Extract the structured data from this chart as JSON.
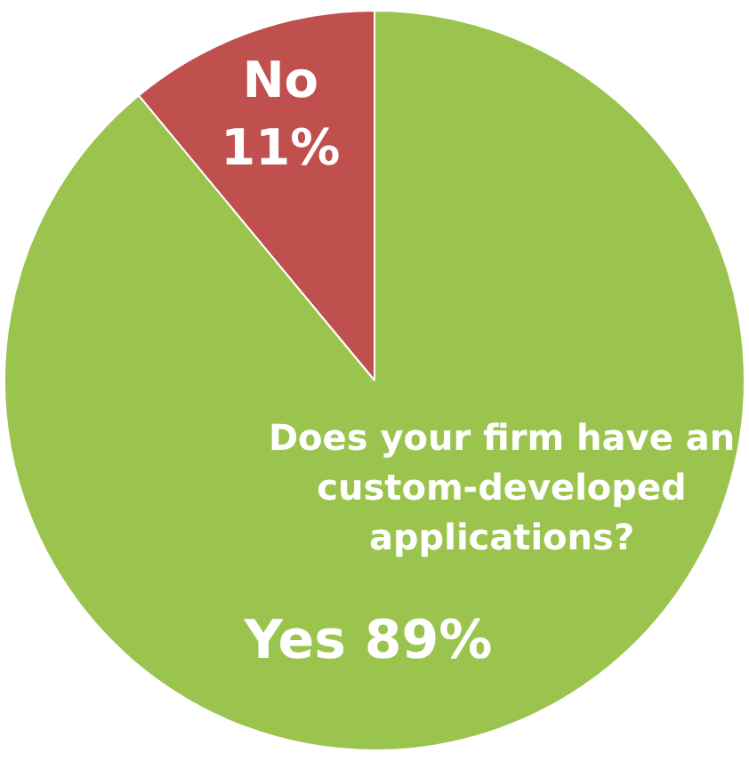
{
  "chart_data": {
    "type": "pie",
    "title": "Does your firm have an custom-developed applications?",
    "categories": [
      "No",
      "Yes"
    ],
    "values": [
      11,
      89
    ],
    "colors": [
      "#c0504d",
      "#9bc44e"
    ],
    "value_labels": [
      "11%",
      "89%"
    ],
    "legend": false
  }
}
